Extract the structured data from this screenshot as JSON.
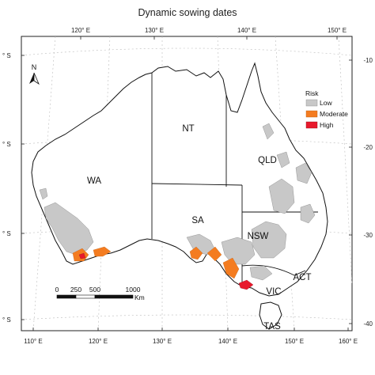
{
  "title": "Dynamic sowing dates",
  "top_ticks": [
    "120° E",
    "130° E",
    "140° E",
    "150° E"
  ],
  "bottom_ticks": [
    "110° E",
    "120° E",
    "130° E",
    "140° E",
    "150° E",
    "160° E"
  ],
  "left_ticks": [
    "° S",
    "° S",
    "° S",
    "° S"
  ],
  "right_ticks": [
    "-10",
    "-20",
    "-30",
    "-40"
  ],
  "north_label": "N",
  "regions": {
    "nt": "NT",
    "wa": "WA",
    "qld": "QLD",
    "sa": "SA",
    "nsw": "NSW",
    "act": "ACT",
    "vic": "VIC",
    "tas": "TAS"
  },
  "legend": {
    "title": "Risk",
    "items": [
      {
        "label": "Low",
        "color": "#c8c8c8"
      },
      {
        "label": "Moderate",
        "color": "#f47c20"
      },
      {
        "label": "High",
        "color": "#e8192c"
      }
    ]
  },
  "scale_bar": {
    "labels": [
      "0",
      "250",
      "500",
      "1000"
    ],
    "unit": "Km"
  }
}
